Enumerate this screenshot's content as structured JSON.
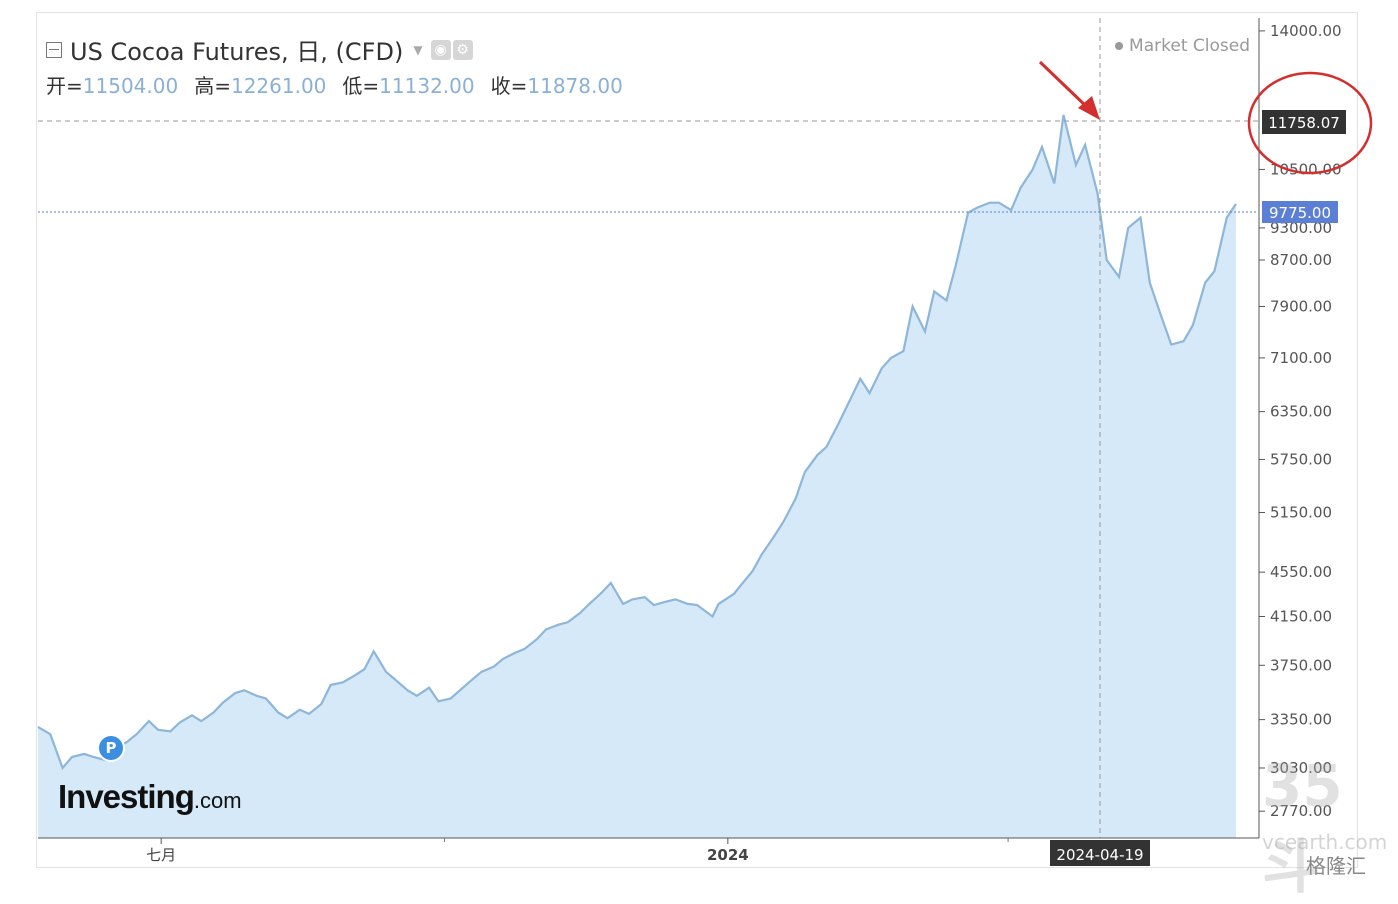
{
  "header": {
    "title": "US Cocoa Futures, 日, (CFD)",
    "open_label": "开=",
    "open": "11504.00",
    "high_label": "高=",
    "high": "12261.00",
    "low_label": "低=",
    "low": "11132.00",
    "close_label": "收=",
    "close": "11878.00",
    "status": "Market Closed"
  },
  "branding": {
    "logo_main": "Investing",
    "logo_suffix": ".com",
    "badge": "P"
  },
  "watermark": {
    "main": "35斗",
    "sub": "vcearth.com",
    "corner": "格隆汇"
  },
  "colors": {
    "line": "#8db6da",
    "fill": "#d6e9f8",
    "current_price_box": "#5b7fd4",
    "crosshair_box": "#333333",
    "annotation": "#d32f2f"
  },
  "chart_data": {
    "type": "area",
    "title": "US Cocoa Futures, 日, (CFD)",
    "x_tick_labels": [
      "七月",
      "2024"
    ],
    "y_tick_labels": [
      "14000.00",
      "10500.00",
      "9300.00",
      "8700.00",
      "7900.00",
      "7100.00",
      "6350.00",
      "5750.00",
      "5150.00",
      "4550.00",
      "4150.00",
      "3750.00",
      "3350.00",
      "3030.00",
      "2770.00"
    ],
    "ylim": [
      2620,
      14380
    ],
    "crosshair": {
      "date": "2024-04-19",
      "price": "11758.07"
    },
    "current_price": "9775.00",
    "series": [
      {
        "values": [
          [
            "2023-05-22",
            3300
          ],
          [
            "2023-05-26",
            3250
          ],
          [
            "2023-05-30",
            3030
          ],
          [
            "2023-06-02",
            3100
          ],
          [
            "2023-06-06",
            3120
          ],
          [
            "2023-06-09",
            3100
          ],
          [
            "2023-06-13",
            3080
          ],
          [
            "2023-06-16",
            3150
          ],
          [
            "2023-06-20",
            3200
          ],
          [
            "2023-06-23",
            3250
          ],
          [
            "2023-06-27",
            3340
          ],
          [
            "2023-06-30",
            3280
          ],
          [
            "2023-07-04",
            3270
          ],
          [
            "2023-07-07",
            3330
          ],
          [
            "2023-07-11",
            3380
          ],
          [
            "2023-07-14",
            3340
          ],
          [
            "2023-07-18",
            3400
          ],
          [
            "2023-07-21",
            3470
          ],
          [
            "2023-07-25",
            3540
          ],
          [
            "2023-07-28",
            3560
          ],
          [
            "2023-08-01",
            3520
          ],
          [
            "2023-08-04",
            3500
          ],
          [
            "2023-08-08",
            3400
          ],
          [
            "2023-08-11",
            3360
          ],
          [
            "2023-08-15",
            3420
          ],
          [
            "2023-08-18",
            3390
          ],
          [
            "2023-08-22",
            3460
          ],
          [
            "2023-08-25",
            3600
          ],
          [
            "2023-08-29",
            3620
          ],
          [
            "2023-09-01",
            3660
          ],
          [
            "2023-09-05",
            3720
          ],
          [
            "2023-09-08",
            3860
          ],
          [
            "2023-09-12",
            3700
          ],
          [
            "2023-09-15",
            3640
          ],
          [
            "2023-09-19",
            3560
          ],
          [
            "2023-09-22",
            3520
          ],
          [
            "2023-09-26",
            3580
          ],
          [
            "2023-09-29",
            3480
          ],
          [
            "2023-10-03",
            3500
          ],
          [
            "2023-10-06",
            3560
          ],
          [
            "2023-10-10",
            3640
          ],
          [
            "2023-10-13",
            3700
          ],
          [
            "2023-10-17",
            3740
          ],
          [
            "2023-10-20",
            3800
          ],
          [
            "2023-10-24",
            3850
          ],
          [
            "2023-10-27",
            3880
          ],
          [
            "2023-10-31",
            3960
          ],
          [
            "2023-11-03",
            4040
          ],
          [
            "2023-11-07",
            4080
          ],
          [
            "2023-11-10",
            4100
          ],
          [
            "2023-11-14",
            4180
          ],
          [
            "2023-11-17",
            4260
          ],
          [
            "2023-11-21",
            4360
          ],
          [
            "2023-11-24",
            4450
          ],
          [
            "2023-11-28",
            4260
          ],
          [
            "2023-12-01",
            4300
          ],
          [
            "2023-12-05",
            4320
          ],
          [
            "2023-12-08",
            4250
          ],
          [
            "2023-12-12",
            4280
          ],
          [
            "2023-12-15",
            4300
          ],
          [
            "2023-12-19",
            4260
          ],
          [
            "2023-12-22",
            4250
          ],
          [
            "2023-12-27",
            4150
          ],
          [
            "2023-12-29",
            4260
          ],
          [
            "2024-01-03",
            4350
          ],
          [
            "2024-01-05",
            4420
          ],
          [
            "2024-01-09",
            4560
          ],
          [
            "2024-01-12",
            4720
          ],
          [
            "2024-01-16",
            4900
          ],
          [
            "2024-01-19",
            5050
          ],
          [
            "2024-01-23",
            5300
          ],
          [
            "2024-01-26",
            5600
          ],
          [
            "2024-01-30",
            5800
          ],
          [
            "2024-02-02",
            5900
          ],
          [
            "2024-02-06",
            6200
          ],
          [
            "2024-02-09",
            6450
          ],
          [
            "2024-02-13",
            6800
          ],
          [
            "2024-02-16",
            6600
          ],
          [
            "2024-02-20",
            6950
          ],
          [
            "2024-02-23",
            7100
          ],
          [
            "2024-02-27",
            7200
          ],
          [
            "2024-03-01",
            7900
          ],
          [
            "2024-03-05",
            7500
          ],
          [
            "2024-03-08",
            8150
          ],
          [
            "2024-03-12",
            8000
          ],
          [
            "2024-03-15",
            8600
          ],
          [
            "2024-03-19",
            9600
          ],
          [
            "2024-03-22",
            9700
          ],
          [
            "2024-03-26",
            9800
          ],
          [
            "2024-03-29",
            9800
          ],
          [
            "2024-04-02",
            9650
          ],
          [
            "2024-04-05",
            10100
          ],
          [
            "2024-04-09",
            10500
          ],
          [
            "2024-04-12",
            11000
          ],
          [
            "2024-04-16",
            10200
          ],
          [
            "2024-04-19",
            11758
          ],
          [
            "2024-04-23",
            10600
          ],
          [
            "2024-04-26",
            11050
          ],
          [
            "2024-04-30",
            10000
          ],
          [
            "2024-05-03",
            8700
          ],
          [
            "2024-05-07",
            8400
          ],
          [
            "2024-05-10",
            9300
          ],
          [
            "2024-05-14",
            9500
          ],
          [
            "2024-05-17",
            8300
          ],
          [
            "2024-05-21",
            7700
          ],
          [
            "2024-05-24",
            7300
          ],
          [
            "2024-05-28",
            7350
          ],
          [
            "2024-05-31",
            7600
          ],
          [
            "2024-06-04",
            8300
          ],
          [
            "2024-06-07",
            8500
          ],
          [
            "2024-06-11",
            9500
          ],
          [
            "2024-06-14",
            9775
          ]
        ]
      }
    ]
  }
}
